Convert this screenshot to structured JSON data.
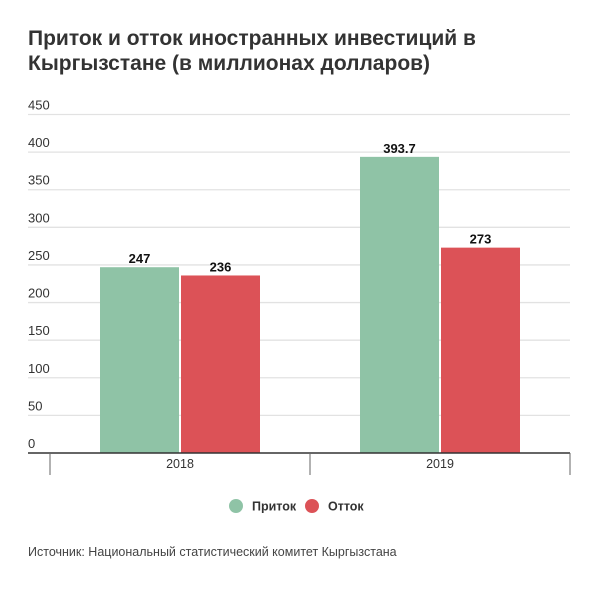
{
  "chart_data": {
    "type": "bar",
    "title": "Приток и отток иностранных инвестиций в Кыргызстане (в миллионах долларов)",
    "categories": [
      "2018",
      "2019"
    ],
    "series": [
      {
        "name": "Приток",
        "values": [
          247,
          393.7
        ],
        "labels": [
          "247",
          "393.7"
        ],
        "color": "#8fc3a6"
      },
      {
        "name": "Отток",
        "values": [
          236,
          273
        ],
        "labels": [
          "236",
          "273"
        ],
        "color": "#dc5257"
      }
    ],
    "ylim": [
      0,
      450
    ],
    "yticks": [
      "0",
      "50",
      "100",
      "150",
      "200",
      "250",
      "300",
      "350",
      "400",
      "450"
    ],
    "grid": true,
    "legend": "bottom-center",
    "xlabel": "",
    "ylabel": ""
  },
  "source": "Источник: Национальный статистический комитет Кыргызстана"
}
